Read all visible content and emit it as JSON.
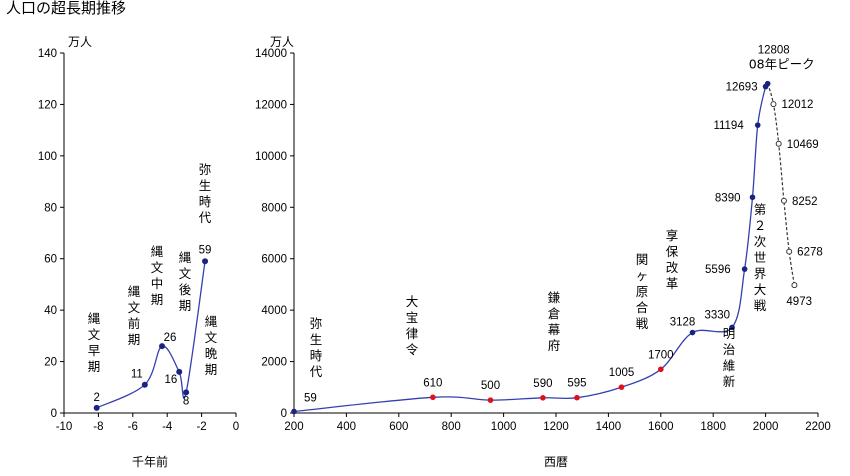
{
  "title": "人口の超長期推移",
  "colors": {
    "line": "#3340b0",
    "marker_blue": "#1a237e",
    "marker_red": "#e0101a",
    "projection": "#333333",
    "axis": "#000000"
  },
  "chart_data": [
    {
      "type": "line",
      "xlabel": "千年前",
      "ylabel": "万人",
      "xlim": [
        -10,
        0
      ],
      "ylim": [
        0,
        140
      ],
      "x_ticks": [
        "-10",
        "-8",
        "-6",
        "-4",
        "-2",
        "0"
      ],
      "y_ticks": [
        "0",
        "20",
        "40",
        "60",
        "80",
        "100",
        "120",
        "140"
      ],
      "points": [
        {
          "x": -8.1,
          "y": 2,
          "label": "2"
        },
        {
          "x": -5.3,
          "y": 11,
          "label": "11"
        },
        {
          "x": -4.3,
          "y": 26,
          "label": "26"
        },
        {
          "x": -3.3,
          "y": 16,
          "label": "16"
        },
        {
          "x": -2.9,
          "y": 8,
          "label": "8"
        },
        {
          "x": -1.8,
          "y": 59,
          "label": "59"
        }
      ],
      "period_labels": [
        "縄文早期",
        "縄文前期",
        "縄文中期",
        "縄文後期",
        "縄文晩期",
        "弥生時代"
      ]
    },
    {
      "type": "line",
      "xlabel": "西暦",
      "ylabel": "万人",
      "xlim": [
        200,
        2200
      ],
      "ylim": [
        0,
        14000
      ],
      "x_ticks": [
        "200",
        "400",
        "600",
        "800",
        "1000",
        "1200",
        "1400",
        "1600",
        "1800",
        "2000",
        "2200"
      ],
      "y_ticks": [
        "0",
        "2000",
        "4000",
        "6000",
        "8000",
        "10000",
        "12000",
        "14000"
      ],
      "points": [
        {
          "x": 200,
          "y": 59,
          "label": "59",
          "marker": "blue"
        },
        {
          "x": 730,
          "y": 610,
          "label": "610",
          "marker": "red"
        },
        {
          "x": 950,
          "y": 500,
          "label": "500",
          "marker": "red"
        },
        {
          "x": 1150,
          "y": 590,
          "label": "590",
          "marker": "red"
        },
        {
          "x": 1280,
          "y": 595,
          "label": "595",
          "marker": "red"
        },
        {
          "x": 1450,
          "y": 1005,
          "label": "1005",
          "marker": "red"
        },
        {
          "x": 1600,
          "y": 1700,
          "label": "1700",
          "marker": "red"
        },
        {
          "x": 1721,
          "y": 3128,
          "label": "3128",
          "marker": "blue"
        },
        {
          "x": 1872,
          "y": 3330,
          "label": "3330",
          "marker": "blue"
        },
        {
          "x": 1920,
          "y": 5596,
          "label": "5596",
          "marker": "blue"
        },
        {
          "x": 1950,
          "y": 8390,
          "label": "8390",
          "marker": "blue"
        },
        {
          "x": 1970,
          "y": 11194,
          "label": "11194",
          "marker": "blue"
        },
        {
          "x": 2000,
          "y": 12693,
          "label": "12693",
          "marker": "blue"
        },
        {
          "x": 2008,
          "y": 12808,
          "label": "12808",
          "marker": "blue"
        }
      ],
      "projection": [
        {
          "x": 2008,
          "y": 12808
        },
        {
          "x": 2030,
          "y": 12012,
          "label": "12012"
        },
        {
          "x": 2050,
          "y": 10469,
          "label": "10469"
        },
        {
          "x": 2070,
          "y": 8252,
          "label": "8252"
        },
        {
          "x": 2090,
          "y": 6278,
          "label": "6278"
        },
        {
          "x": 2110,
          "y": 4973,
          "label": "4973"
        }
      ],
      "period_labels": [
        "弥生時代",
        "大宝律令",
        "鎌倉幕府",
        "関ヶ原合戦",
        "享保改革",
        "明治維新",
        "第２次世界大戦"
      ],
      "peak_label": "08年ピーク"
    }
  ]
}
